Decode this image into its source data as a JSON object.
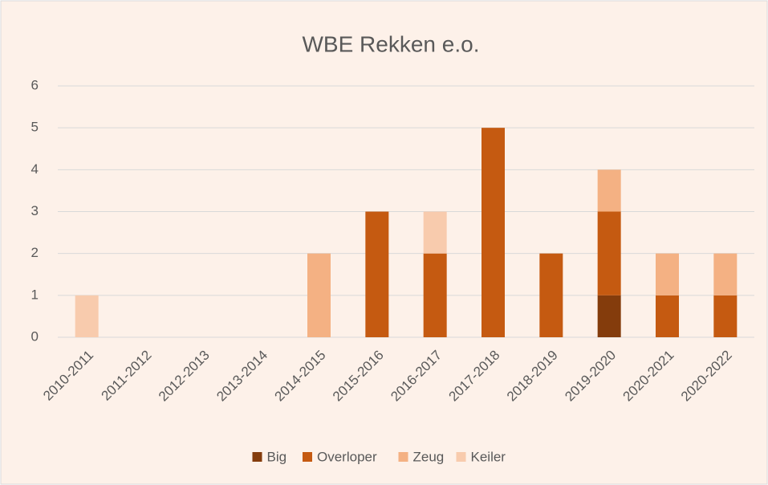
{
  "chart_data": {
    "type": "stacked_bar",
    "title": "WBE Rekken e.o.",
    "categories": [
      "2010-2011",
      "2011-2012",
      "2012-2013",
      "2013-2014",
      "2014-2015",
      "2015-2016",
      "2016-2017",
      "2017-2018",
      "2018-2019",
      "2019-2020",
      "2020-2021",
      "2020-2022"
    ],
    "series": [
      {
        "name": "Big",
        "color": "#843c0c",
        "values": [
          0,
          0,
          0,
          0,
          0,
          0,
          0,
          0,
          0,
          1,
          0,
          0
        ]
      },
      {
        "name": "Overloper",
        "color": "#c55a11",
        "values": [
          0,
          0,
          0,
          0,
          0,
          3,
          2,
          5,
          2,
          2,
          1,
          1
        ]
      },
      {
        "name": "Zeug",
        "color": "#f4b183",
        "values": [
          0,
          0,
          0,
          0,
          2,
          0,
          0,
          0,
          0,
          1,
          1,
          1
        ]
      },
      {
        "name": "Keiler",
        "color": "#f8cbad",
        "values": [
          1,
          0,
          0,
          0,
          0,
          0,
          1,
          0,
          0,
          0,
          0,
          0
        ]
      }
    ],
    "ylim": [
      0,
      6
    ],
    "yticks": [
      0,
      1,
      2,
      3,
      4,
      5,
      6
    ],
    "grid": true,
    "legend": "bottom"
  }
}
